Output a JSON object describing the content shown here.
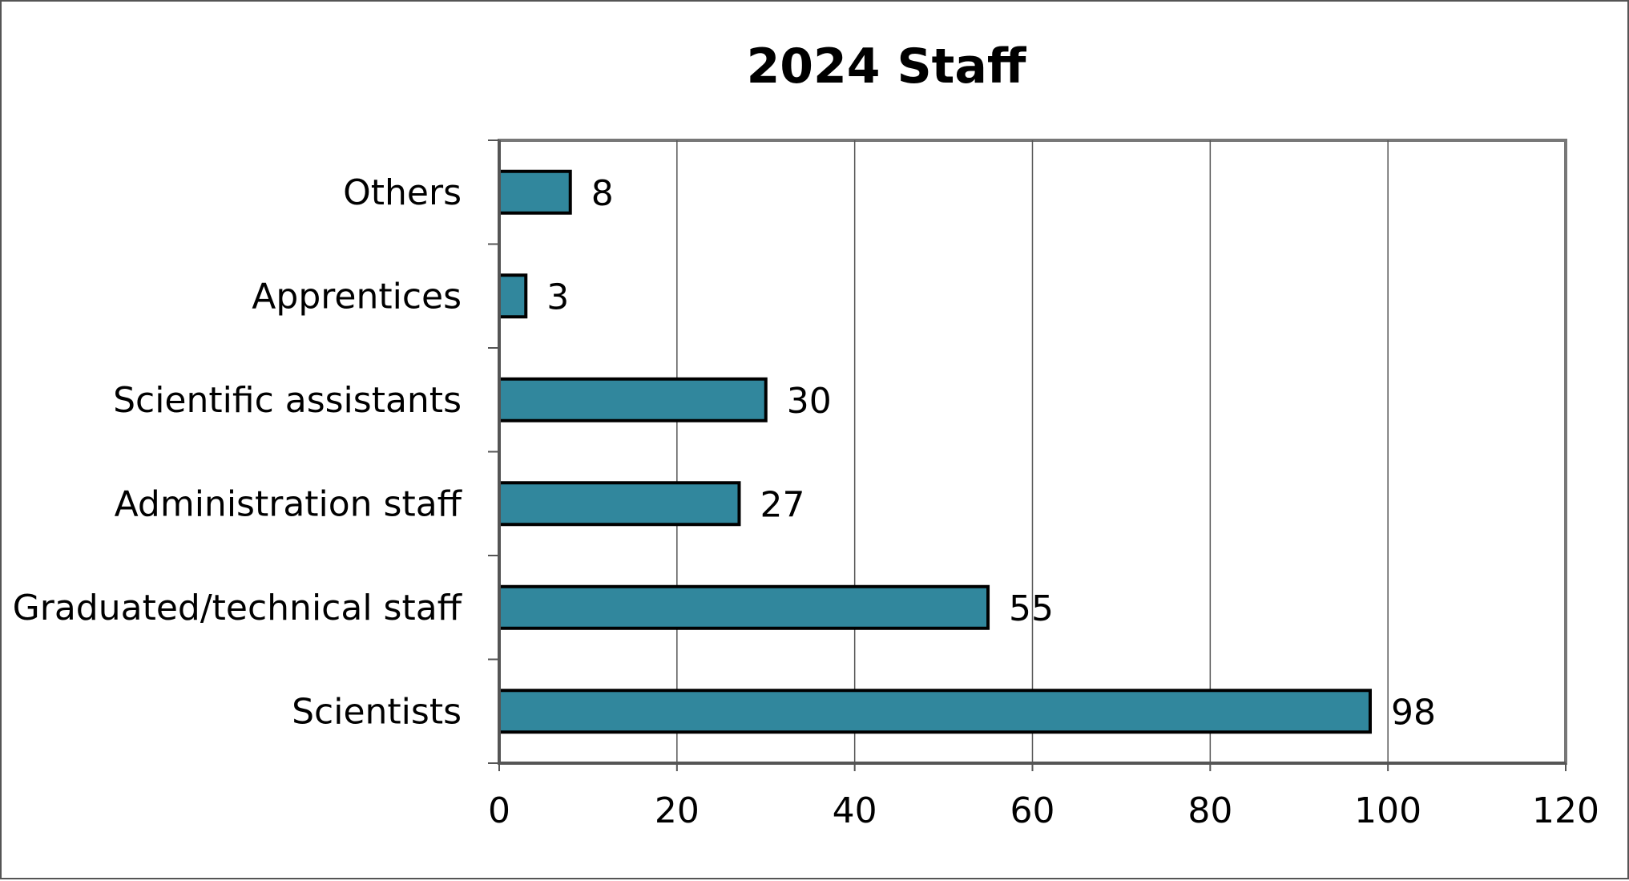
{
  "chart_data": {
    "type": "bar",
    "orientation": "horizontal",
    "title": "2024 Staff",
    "xlabel": "",
    "ylabel": "",
    "categories": [
      "Scientists",
      "Graduated/technical staff",
      "Administration staff",
      "Scientific assistants",
      "Apprentices",
      "Others"
    ],
    "values": [
      98,
      55,
      27,
      30,
      3,
      8
    ],
    "data_labels": [
      "98",
      "55",
      "27",
      "30",
      "3",
      "8"
    ],
    "xlim": [
      0,
      120
    ],
    "xticks": [
      0,
      20,
      40,
      60,
      80,
      100,
      120
    ],
    "xtick_labels": [
      "0",
      "20",
      "40",
      "60",
      "80",
      "100",
      "120"
    ],
    "grid": "vertical",
    "legend": "none",
    "colors": {
      "bar": "#31879d",
      "bar_edge": "#000000",
      "grid": "#555555"
    }
  }
}
